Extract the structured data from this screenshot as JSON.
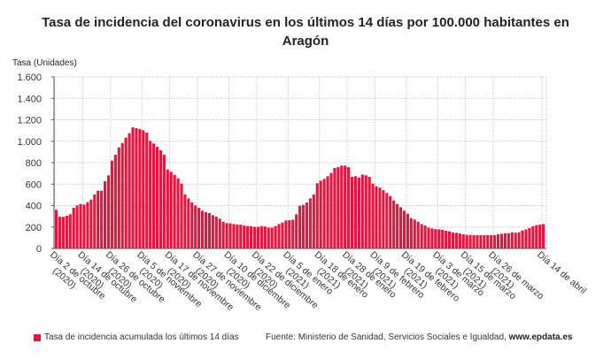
{
  "title_lines": [
    "Tasa de incidencia del coronavirus en los últimos 14 días por 100.000 habitantes en",
    "Aragón"
  ],
  "legend": {
    "label": "Tasa de incidencia acumulada los últimos 14 días",
    "color": "#e3163f"
  },
  "source": {
    "prefix": "Fuente: Ministerio de Sanidad, Servicios Sociales e Igualdad, ",
    "site": "www.epdata.es"
  },
  "chart_data": {
    "type": "bar",
    "title": "Tasa de incidencia del coronavirus en los últimos 14 días por 100.000 habitantes en Aragón",
    "ylabel": "Tasa (Unidades)",
    "xlabel": "",
    "ylim": [
      0,
      1600
    ],
    "yticks": [
      0,
      200,
      400,
      600,
      800,
      1000,
      1200,
      1400,
      1600
    ],
    "ytick_labels": [
      "0",
      "200",
      "400",
      "600",
      "800",
      "1.000",
      "1.200",
      "1.400",
      "1.600"
    ],
    "grid": true,
    "legend_position": "bottom-left",
    "series": [
      {
        "name": "Tasa de incidencia acumulada los últimos 14 días",
        "color": "#e3163f",
        "values": [
          360,
          297,
          295,
          305,
          319,
          379,
          401,
          415,
          410,
          432,
          456,
          503,
          539,
          539,
          627,
          682,
          819,
          874,
          943,
          984,
          1034,
          1075,
          1130,
          1122,
          1114,
          1103,
          1081,
          1004,
          979,
          948,
          915,
          874,
          737,
          715,
          687,
          654,
          605,
          503,
          467,
          429,
          401,
          379,
          352,
          338,
          330,
          311,
          297,
          278,
          250,
          237,
          234,
          228,
          224,
          222,
          214,
          210,
          207,
          201,
          201,
          209,
          205,
          195,
          195,
          209,
          228,
          242,
          261,
          264,
          268,
          319,
          398,
          407,
          429,
          467,
          503,
          608,
          632,
          649,
          674,
          704,
          750,
          759,
          773,
          773,
          759,
          668,
          674,
          662,
          690,
          682,
          668,
          605,
          580,
          567,
          544,
          517,
          489,
          448,
          415,
          385,
          352,
          324,
          283,
          270,
          250,
          228,
          214,
          195,
          188,
          181,
          178,
          173,
          165,
          160,
          149,
          146,
          140,
          132,
          127,
          127,
          124,
          124,
          124,
          124,
          124,
          124,
          124,
          132,
          137,
          143,
          143,
          151,
          147,
          151,
          168,
          178,
          192,
          208,
          217,
          223,
          228
        ]
      }
    ],
    "x_ticks": [
      {
        "index": 0,
        "label": [
          "Día 2 de octubre",
          "(2020)"
        ]
      },
      {
        "index": 8,
        "label": [
          "Día 14 de octubre",
          "(2020)"
        ]
      },
      {
        "index": 16,
        "label": [
          "Día 26 de octubre",
          "(2020)"
        ]
      },
      {
        "index": 25,
        "label": [
          "Día 5 de noviembre",
          "(2020)"
        ]
      },
      {
        "index": 33,
        "label": [
          "Día 17 de noviembre",
          "(2020)"
        ]
      },
      {
        "index": 41,
        "label": [
          "Día 27 de noviembre",
          "(2020)"
        ]
      },
      {
        "index": 50,
        "label": [
          "Día 10 de diciembre",
          "(2020)"
        ]
      },
      {
        "index": 58,
        "label": [
          "Día 22 de diciembre",
          "(2020)"
        ]
      },
      {
        "index": 67,
        "label": [
          "Día 5 de enero",
          "(2021)"
        ]
      },
      {
        "index": 76,
        "label": [
          "Día 18 de enero",
          "(2021)"
        ]
      },
      {
        "index": 84,
        "label": [
          "Día 28 de enero",
          "(2021)"
        ]
      },
      {
        "index": 92,
        "label": [
          "Día 9 de febrero",
          "(2021)"
        ]
      },
      {
        "index": 101,
        "label": [
          "Día 19 de febrero",
          "(2021)"
        ]
      },
      {
        "index": 110,
        "label": [
          "Día 3 de marzo",
          "(2021)"
        ]
      },
      {
        "index": 118,
        "label": [
          "Día 15 de marzo",
          "(2021)"
        ]
      },
      {
        "index": 126,
        "label": [
          "Día 26 de marzo",
          "(2021)"
        ]
      },
      {
        "index": 140,
        "label": [
          "Día 14 de abril"
        ]
      }
    ]
  }
}
